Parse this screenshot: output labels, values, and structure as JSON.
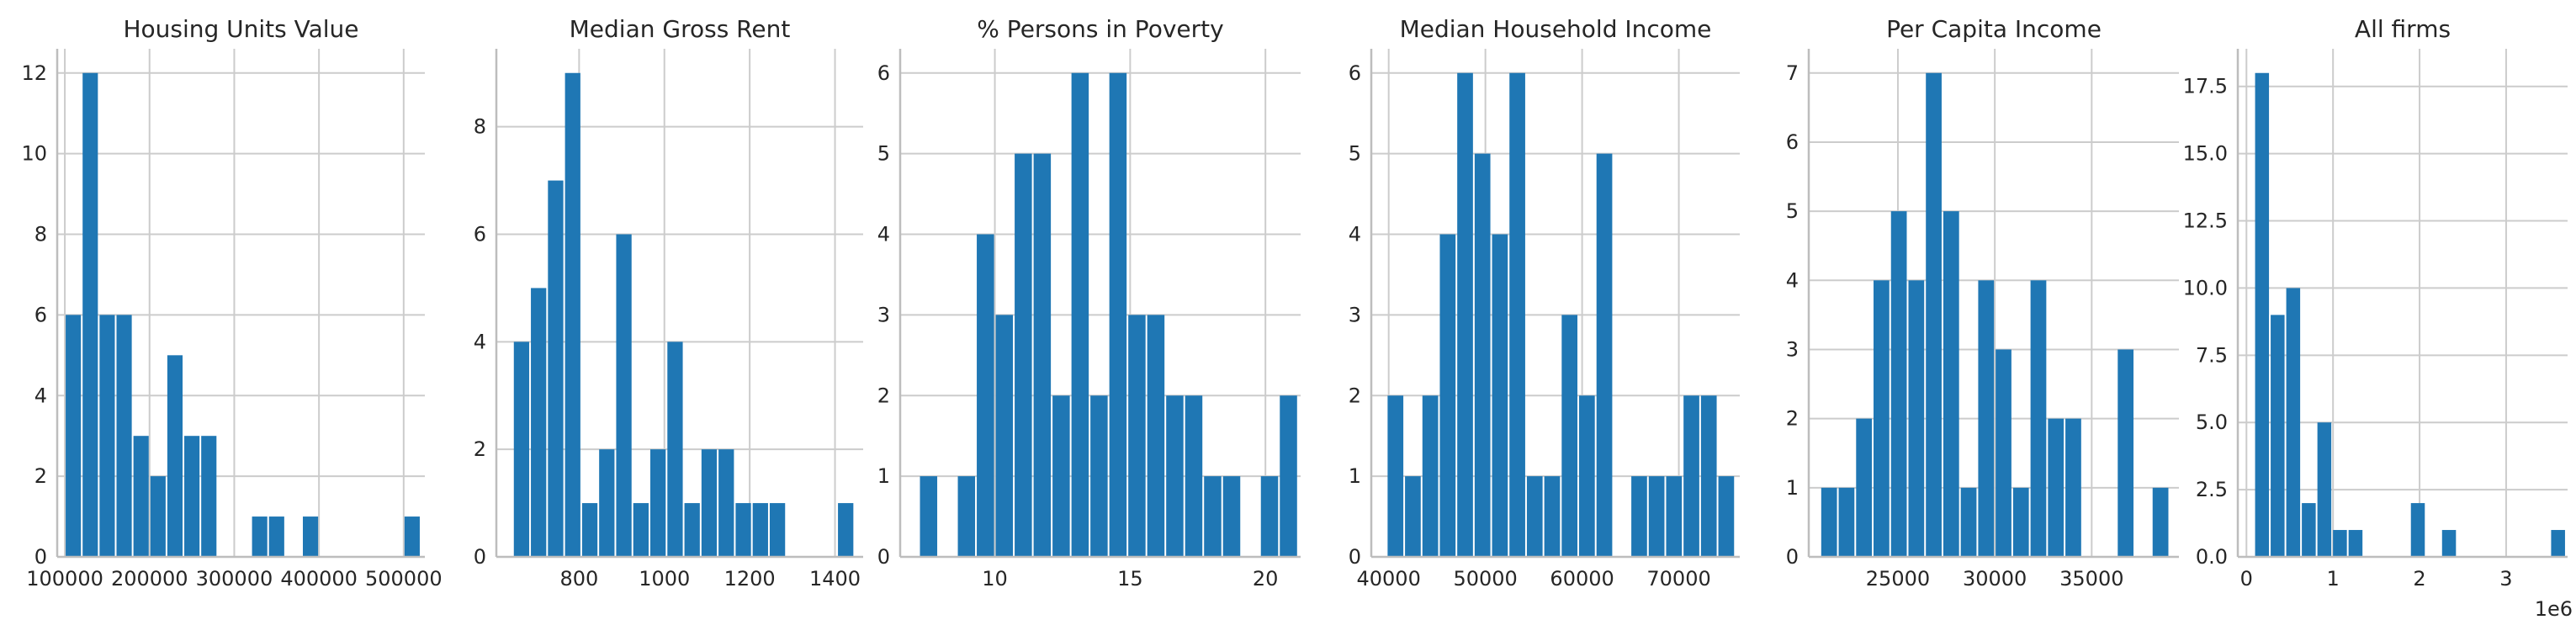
{
  "bar_color": "#1f77b4",
  "grid_color": "#cccccc",
  "chart_data": [
    {
      "type": "bar",
      "title": "Housing Units Value",
      "xlim": [
        91000,
        525000
      ],
      "ylim": [
        0,
        12.6
      ],
      "bins": [
        [
          100000,
          120000
        ],
        [
          120000,
          140000
        ],
        [
          140000,
          160000
        ],
        [
          160000,
          180000
        ],
        [
          180000,
          200000
        ],
        [
          200000,
          220000
        ],
        [
          220000,
          240000
        ],
        [
          240000,
          260000
        ],
        [
          260000,
          280000
        ],
        [
          280000,
          300000
        ],
        [
          300000,
          320000
        ],
        [
          320000,
          340000
        ],
        [
          340000,
          360000
        ],
        [
          360000,
          380000
        ],
        [
          380000,
          400000
        ],
        [
          400000,
          420000
        ],
        [
          420000,
          440000
        ],
        [
          440000,
          460000
        ],
        [
          460000,
          480000
        ],
        [
          480000,
          500000
        ],
        [
          500000,
          520000
        ]
      ],
      "values": [
        6,
        12,
        6,
        6,
        3,
        2,
        5,
        3,
        3,
        0,
        0,
        1,
        1,
        0,
        1,
        0,
        0,
        0,
        0,
        0,
        1
      ],
      "xticks": [
        100000,
        200000,
        300000,
        400000,
        500000
      ],
      "xtick_labels": [
        "100000",
        "200000",
        "300000",
        "400000",
        "500000"
      ],
      "yticks": [
        0,
        2,
        4,
        6,
        8,
        10,
        12
      ],
      "ytick_labels": [
        "0",
        "2",
        "4",
        "6",
        "8",
        "10",
        "12"
      ],
      "offset_text": ""
    },
    {
      "type": "bar",
      "title": "Median Gross Rent",
      "xlim": [
        606,
        1466
      ],
      "ylim": [
        0,
        9.45
      ],
      "bins": [
        [
          645,
          685
        ],
        [
          685,
          725
        ],
        [
          725,
          765
        ],
        [
          765,
          805
        ],
        [
          805,
          845
        ],
        [
          845,
          885
        ],
        [
          885,
          925
        ],
        [
          925,
          965
        ],
        [
          965,
          1005
        ],
        [
          1005,
          1045
        ],
        [
          1045,
          1085
        ],
        [
          1085,
          1125
        ],
        [
          1125,
          1165
        ],
        [
          1165,
          1205
        ],
        [
          1205,
          1245
        ],
        [
          1245,
          1285
        ],
        [
          1285,
          1325
        ],
        [
          1325,
          1365
        ],
        [
          1365,
          1405
        ],
        [
          1405,
          1445
        ]
      ],
      "values": [
        4,
        5,
        7,
        9,
        1,
        2,
        6,
        1,
        2,
        4,
        1,
        2,
        2,
        1,
        1,
        1,
        0,
        0,
        0,
        1
      ],
      "xticks": [
        800,
        1000,
        1200,
        1400
      ],
      "xtick_labels": [
        "800",
        "1000",
        "1200",
        "1400"
      ],
      "yticks": [
        0,
        2,
        4,
        6,
        8
      ],
      "ytick_labels": [
        "0",
        "2",
        "4",
        "6",
        "8"
      ],
      "offset_text": ""
    },
    {
      "type": "bar",
      "title": "% Persons in Poverty",
      "xlim": [
        6.5,
        21.3
      ],
      "ylim": [
        0,
        6.3
      ],
      "bins": [
        [
          7.2,
          7.9
        ],
        [
          7.9,
          8.6
        ],
        [
          8.6,
          9.3
        ],
        [
          9.3,
          10.0
        ],
        [
          10.0,
          10.7
        ],
        [
          10.7,
          11.4
        ],
        [
          11.4,
          12.1
        ],
        [
          12.1,
          12.8
        ],
        [
          12.8,
          13.5
        ],
        [
          13.5,
          14.2
        ],
        [
          14.2,
          14.9
        ],
        [
          14.9,
          15.6
        ],
        [
          15.6,
          16.3
        ],
        [
          16.3,
          17.0
        ],
        [
          17.0,
          17.7
        ],
        [
          17.7,
          18.4
        ],
        [
          18.4,
          19.1
        ],
        [
          19.1,
          19.8
        ],
        [
          19.8,
          20.5
        ],
        [
          20.5,
          21.2
        ]
      ],
      "values": [
        1,
        0,
        1,
        4,
        3,
        5,
        5,
        2,
        6,
        2,
        6,
        3,
        3,
        2,
        2,
        1,
        1,
        0,
        1,
        2
      ],
      "xticks": [
        10,
        15,
        20
      ],
      "xtick_labels": [
        "10",
        "15",
        "20"
      ],
      "yticks": [
        0,
        1,
        2,
        3,
        4,
        5,
        6
      ],
      "ytick_labels": [
        "0",
        "1",
        "2",
        "3",
        "4",
        "5",
        "6"
      ],
      "offset_text": ""
    },
    {
      "type": "bar",
      "title": "Median Household Income",
      "xlim": [
        38200,
        76300
      ],
      "ylim": [
        0,
        6.3
      ],
      "bins": [
        [
          39800,
          41600
        ],
        [
          41600,
          43400
        ],
        [
          43400,
          45200
        ],
        [
          45200,
          47000
        ],
        [
          47000,
          48800
        ],
        [
          48800,
          50600
        ],
        [
          50600,
          52400
        ],
        [
          52400,
          54200
        ],
        [
          54200,
          56000
        ],
        [
          56000,
          57800
        ],
        [
          57800,
          59600
        ],
        [
          59600,
          61400
        ],
        [
          61400,
          63200
        ],
        [
          63200,
          65000
        ],
        [
          65000,
          66800
        ],
        [
          66800,
          68600
        ],
        [
          68600,
          70400
        ],
        [
          70400,
          72200
        ],
        [
          72200,
          74000
        ],
        [
          74000,
          75800
        ]
      ],
      "values": [
        2,
        1,
        2,
        4,
        6,
        5,
        4,
        6,
        1,
        1,
        3,
        2,
        5,
        0,
        1,
        1,
        1,
        2,
        2,
        1
      ],
      "xticks": [
        40000,
        50000,
        60000,
        70000
      ],
      "xtick_labels": [
        "40000",
        "50000",
        "60000",
        "70000"
      ],
      "yticks": [
        0,
        1,
        2,
        3,
        4,
        5,
        6
      ],
      "ytick_labels": [
        "0",
        "1",
        "2",
        "3",
        "4",
        "5",
        "6"
      ],
      "offset_text": ""
    },
    {
      "type": "bar",
      "title": "Per Capita Income",
      "xlim": [
        20400,
        39500
      ],
      "ylim": [
        0,
        7.35
      ],
      "bins": [
        [
          21000,
          21900
        ],
        [
          21900,
          22800
        ],
        [
          22800,
          23700
        ],
        [
          23700,
          24600
        ],
        [
          24600,
          25500
        ],
        [
          25500,
          26400
        ],
        [
          26400,
          27300
        ],
        [
          27300,
          28200
        ],
        [
          28200,
          29100
        ],
        [
          29100,
          30000
        ],
        [
          30000,
          30900
        ],
        [
          30900,
          31800
        ],
        [
          31800,
          32700
        ],
        [
          32700,
          33600
        ],
        [
          33600,
          34500
        ],
        [
          34500,
          35400
        ],
        [
          35400,
          36300
        ],
        [
          36300,
          37200
        ],
        [
          37200,
          38100
        ],
        [
          38100,
          39000
        ]
      ],
      "values": [
        1,
        1,
        2,
        4,
        5,
        4,
        7,
        5,
        1,
        4,
        3,
        1,
        4,
        2,
        2,
        0,
        0,
        3,
        0,
        1
      ],
      "xticks": [
        25000,
        30000,
        35000
      ],
      "xtick_labels": [
        "25000",
        "30000",
        "35000"
      ],
      "yticks": [
        0,
        1,
        2,
        3,
        4,
        5,
        6,
        7
      ],
      "ytick_labels": [
        "0",
        "1",
        "2",
        "3",
        "4",
        "5",
        "6",
        "7"
      ],
      "offset_text": ""
    },
    {
      "type": "bar",
      "title": "All firms",
      "xlim": [
        -100000,
        3710000
      ],
      "ylim": [
        0,
        18.9
      ],
      "bins": [
        [
          90000,
          270000
        ],
        [
          270000,
          450000
        ],
        [
          450000,
          630000
        ],
        [
          630000,
          810000
        ],
        [
          810000,
          990000
        ],
        [
          990000,
          1170000
        ],
        [
          1170000,
          1350000
        ],
        [
          1350000,
          1530000
        ],
        [
          1530000,
          1710000
        ],
        [
          1710000,
          1890000
        ],
        [
          1890000,
          2070000
        ],
        [
          2070000,
          2250000
        ],
        [
          2250000,
          2430000
        ],
        [
          2430000,
          2610000
        ],
        [
          2610000,
          2790000
        ],
        [
          2790000,
          2970000
        ],
        [
          2970000,
          3150000
        ],
        [
          3150000,
          3330000
        ],
        [
          3330000,
          3510000
        ],
        [
          3510000,
          3690000
        ]
      ],
      "values": [
        18,
        9,
        10,
        2,
        5,
        1,
        1,
        0,
        0,
        0,
        2,
        0,
        1,
        0,
        0,
        0,
        0,
        0,
        0,
        1
      ],
      "xticks": [
        0,
        1000000,
        2000000,
        3000000
      ],
      "xtick_labels": [
        "0",
        "1",
        "2",
        "3"
      ],
      "yticks": [
        0,
        2.5,
        5,
        7.5,
        10,
        12.5,
        15,
        17.5
      ],
      "ytick_labels": [
        "0.0",
        "2.5",
        "5.0",
        "7.5",
        "10.0",
        "12.5",
        "15.0",
        "17.5"
      ],
      "offset_text": "1e6"
    }
  ]
}
